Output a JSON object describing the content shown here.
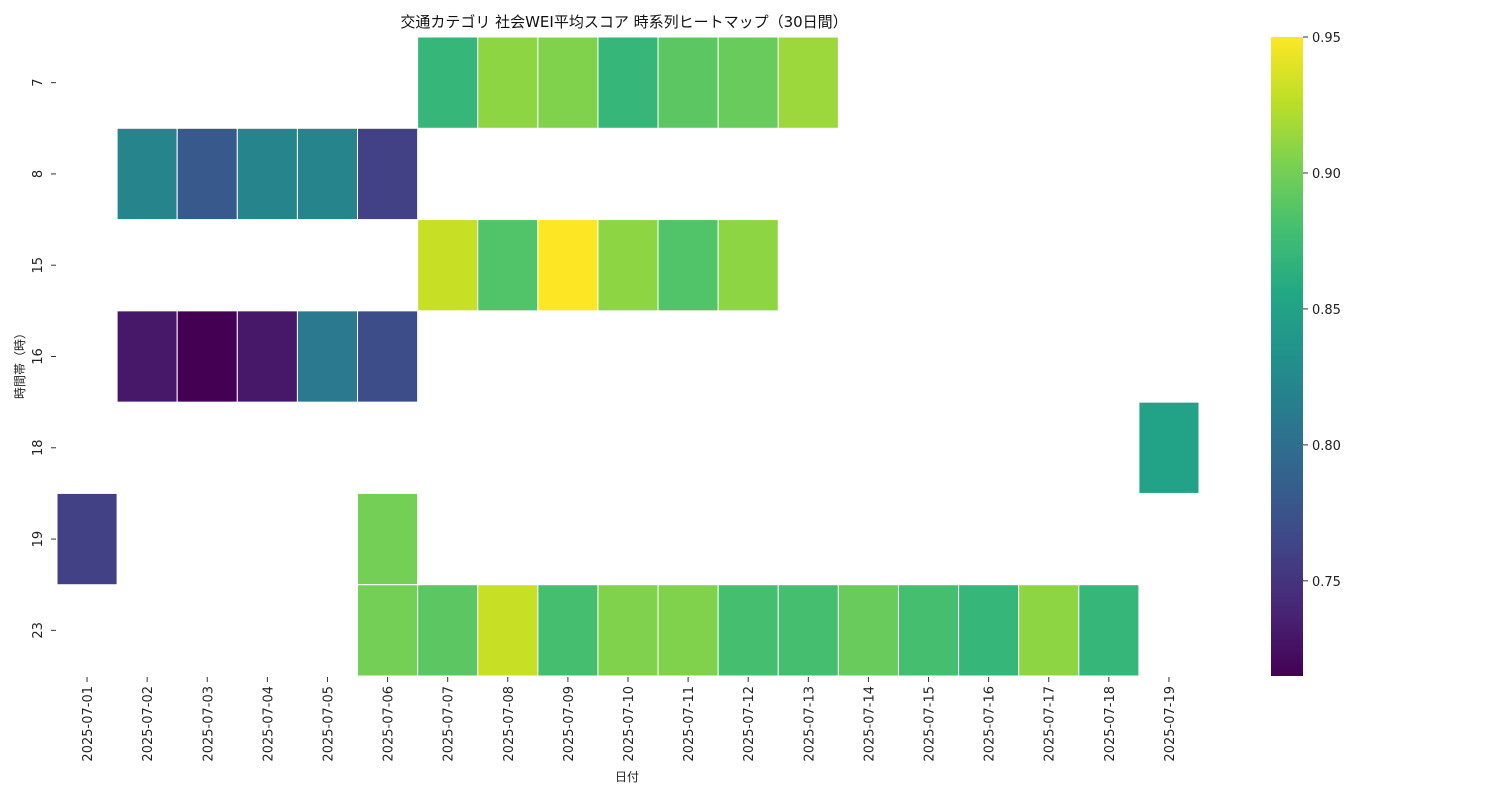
{
  "chart_data": {
    "type": "heatmap",
    "title": "交通カテゴリ 社会WEI平均スコア 時系列ヒートマップ（30日間）",
    "xlabel": "日付",
    "ylabel": "時間帯（時）",
    "x": [
      "2025-07-01",
      "2025-07-02",
      "2025-07-03",
      "2025-07-04",
      "2025-07-05",
      "2025-07-06",
      "2025-07-07",
      "2025-07-08",
      "2025-07-09",
      "2025-07-10",
      "2025-07-11",
      "2025-07-12",
      "2025-07-13",
      "2025-07-14",
      "2025-07-15",
      "2025-07-16",
      "2025-07-17",
      "2025-07-18",
      "2025-07-19"
    ],
    "y": [
      "7",
      "8",
      "15",
      "16",
      "18",
      "19",
      "23"
    ],
    "values": [
      [
        null,
        null,
        null,
        null,
        null,
        null,
        0.87,
        0.91,
        0.905,
        0.87,
        0.89,
        0.895,
        0.915,
        null,
        null,
        null,
        null,
        null,
        null
      ],
      [
        null,
        0.82,
        0.78,
        0.82,
        0.82,
        0.76,
        null,
        null,
        null,
        null,
        null,
        null,
        null,
        null,
        null,
        null,
        null,
        null,
        null
      ],
      [
        null,
        null,
        null,
        null,
        null,
        null,
        0.93,
        0.885,
        0.95,
        0.91,
        0.885,
        0.91,
        null,
        null,
        null,
        null,
        null,
        null,
        null
      ],
      [
        null,
        0.73,
        0.715,
        0.73,
        0.81,
        0.77,
        null,
        null,
        null,
        null,
        null,
        null,
        null,
        null,
        null,
        null,
        null,
        null,
        null
      ],
      [
        null,
        null,
        null,
        null,
        null,
        null,
        null,
        null,
        null,
        null,
        null,
        null,
        null,
        null,
        null,
        null,
        null,
        null,
        0.85
      ],
      [
        0.76,
        null,
        null,
        null,
        null,
        0.9,
        null,
        null,
        null,
        null,
        null,
        null,
        null,
        null,
        null,
        null,
        null,
        null,
        null
      ],
      [
        null,
        null,
        null,
        null,
        null,
        0.9,
        0.89,
        0.93,
        0.88,
        0.905,
        0.905,
        0.88,
        0.88,
        0.895,
        0.88,
        0.87,
        0.91,
        0.87,
        null
      ]
    ],
    "colormap": "viridis",
    "colorbar": {
      "range": [
        0.715,
        0.95
      ],
      "ticks": [
        "0.75",
        "0.80",
        "0.85",
        "0.90",
        "0.95"
      ],
      "tick_values": [
        0.75,
        0.8,
        0.85,
        0.9,
        0.95
      ]
    },
    "grid": false,
    "legend": "colorbar-right"
  }
}
